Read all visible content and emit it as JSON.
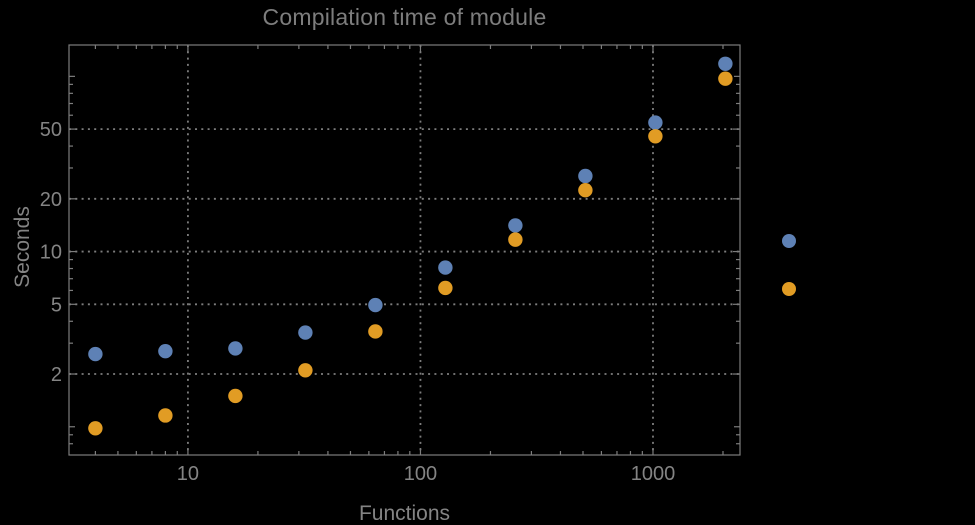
{
  "chart_data": {
    "type": "scatter",
    "title": "Compilation time of module",
    "xlabel": "Functions",
    "ylabel": "Seconds",
    "x_scale": "log",
    "y_scale": "log",
    "xlim": [
      3.08,
      2367
    ],
    "ylim": [
      0.69,
      151
    ],
    "grid": "dotted",
    "x_ticks": [
      {
        "value": 10,
        "label": "10"
      },
      {
        "value": 100,
        "label": "100"
      },
      {
        "value": 1000,
        "label": "1000"
      }
    ],
    "y_ticks": [
      {
        "value": 2,
        "label": "2"
      },
      {
        "value": 5,
        "label": "5"
      },
      {
        "value": 10,
        "label": "10"
      },
      {
        "value": 20,
        "label": "20"
      },
      {
        "value": 50,
        "label": "50"
      }
    ],
    "x": [
      4,
      8,
      16,
      32,
      64,
      128,
      256,
      512,
      1024,
      2048
    ],
    "series": [
      {
        "name": "blue",
        "color": "#5e81b5",
        "values": [
          2.6,
          2.7,
          2.8,
          3.45,
          4.95,
          8.1,
          14.1,
          27,
          54.5,
          118
        ]
      },
      {
        "name": "orange",
        "color": "#e19c24",
        "values": [
          0.98,
          1.16,
          1.5,
          2.1,
          3.5,
          6.2,
          11.7,
          22.4,
          45.5,
          97
        ]
      }
    ],
    "legend": {
      "position": "right-outside",
      "markers": [
        {
          "name": "blue",
          "color": "#5e81b5"
        },
        {
          "name": "orange",
          "color": "#e19c24"
        }
      ]
    }
  },
  "colors": {
    "background": "#000000",
    "frame": "#7d7d7d",
    "grid": "#7d7d7d",
    "tick_label": "#848484",
    "title": "#7d7d7d"
  }
}
